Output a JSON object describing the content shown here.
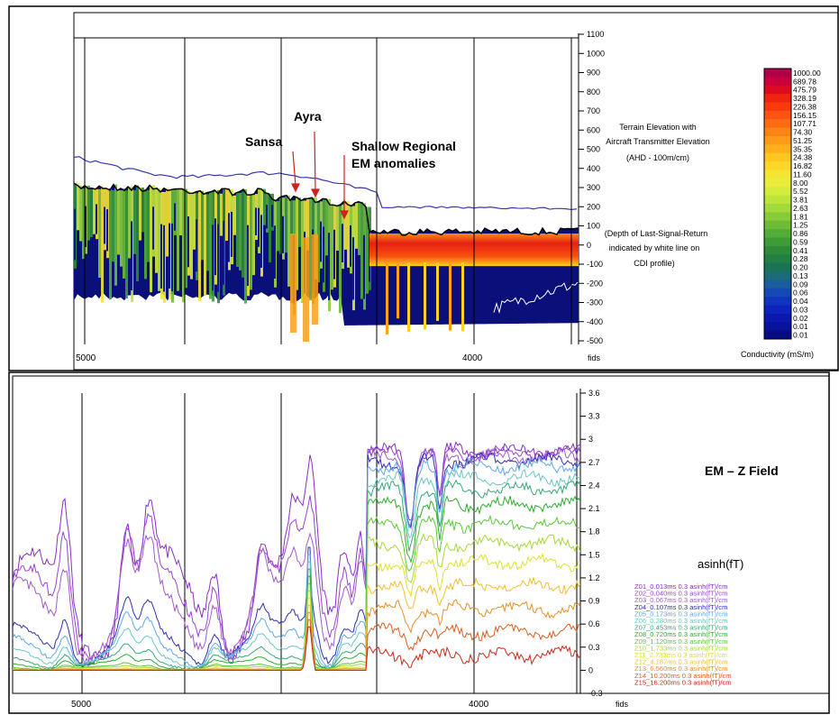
{
  "chart_data": [
    {
      "type": "heatmap",
      "title": "",
      "annotations": [
        "Sansa",
        "Ayra",
        "Shallow Regional",
        "EM anomalies"
      ],
      "side_text": {
        "line1": "Terrain Elevation with",
        "line2": "Aircraft Transmitter Elevation",
        "line3": "(AHD - 100m/cm)",
        "line4": "(Depth of Last-Signal-Return",
        "line5": "indicated by white line on",
        "line6": "CDI profile)"
      },
      "y_ticks": [
        "1100",
        "1000",
        "900",
        "800",
        "700",
        "600",
        "500",
        "400",
        "300",
        "200",
        "100",
        "0",
        "-100",
        "-200",
        "-300",
        "-400",
        "-500"
      ],
      "ylim": [
        -500,
        1100
      ],
      "x_ticks": [
        "5000",
        "4000"
      ],
      "x_unit": "fids",
      "colorbar": {
        "label": "Conductivity (mS/m)",
        "values": [
          "1000.00",
          "689.78",
          "475.79",
          "328.19",
          "226.38",
          "156.15",
          "107.71",
          "74.30",
          "51.25",
          "35.35",
          "24.38",
          "16.82",
          "11.60",
          "8.00",
          "5.52",
          "3.81",
          "2.63",
          "1.81",
          "1.25",
          "0.86",
          "0.59",
          "0.41",
          "0.28",
          "0.20",
          "0.13",
          "0.09",
          "0.06",
          "0.04",
          "0.03",
          "0.02",
          "0.01",
          "0.01"
        ],
        "colors": [
          "#b0004a",
          "#c8003c",
          "#dd0a22",
          "#ee2410",
          "#f83a0a",
          "#fb5410",
          "#fd6c12",
          "#fd8414",
          "#fe9c18",
          "#feb01c",
          "#fec620",
          "#fcd628",
          "#f6e434",
          "#eaec3c",
          "#d6ec3a",
          "#bce43a",
          "#a2da3a",
          "#86cc38",
          "#6cbc38",
          "#52ac36",
          "#3e9c36",
          "#2e8c38",
          "#228044",
          "#1a7454",
          "#1a6c78",
          "#1a5c9c",
          "#1448b4",
          "#1034c0",
          "#0c24bc",
          "#0a18b0",
          "#08129c",
          "#060c84"
        ]
      }
    },
    {
      "type": "line",
      "title": "EM – Z Field",
      "ylabel": "asinh(fT)",
      "y_ticks": [
        "3.6",
        "3.3",
        "3",
        "2.7",
        "2.4",
        "2.1",
        "1.8",
        "1.5",
        "1.2",
        "0.9",
        "0.6",
        "0.3",
        "0",
        "-0.3"
      ],
      "ylim": [
        -0.3,
        3.6
      ],
      "x_ticks": [
        "5000",
        "4000"
      ],
      "x_unit": "fids",
      "series": [
        {
          "name": "Z01_0.013ms 0.3 asinh(fT)/cm",
          "color": "#8a2fc8",
          "left_level": 1.55,
          "right_level": 2.85
        },
        {
          "name": "Z02_0.040ms 0.3 asinh(fT)/cm",
          "color": "#9b44d2",
          "left_level": 1.35,
          "right_level": 2.82
        },
        {
          "name": "Z03_0.067ms 0.3 asinh(fT)/cm",
          "color": "#a05cc8",
          "left_level": 1.15,
          "right_level": 2.78
        },
        {
          "name": "Z04_0.107ms 0.3 asinh(fT)/cm",
          "color": "#3030b8",
          "left_level": 0.6,
          "right_level": 2.72
        },
        {
          "name": "Z05_0.173ms 0.3 asinh(fT)/cm",
          "color": "#60a8e8",
          "left_level": 0.45,
          "right_level": 2.65
        },
        {
          "name": "Z06_0.280ms 0.3 asinh(fT)/cm",
          "color": "#6cc8c0",
          "left_level": 0.32,
          "right_level": 2.5
        },
        {
          "name": "Z07_0.453ms 0.3 asinh(fT)/cm",
          "color": "#38a878",
          "left_level": 0.2,
          "right_level": 2.35
        },
        {
          "name": "Z08_0.720ms 0.3 asinh(fT)/cm",
          "color": "#2fae2f",
          "left_level": 0.12,
          "right_level": 2.15
        },
        {
          "name": "Z09_1.120ms 0.3 asinh(fT)/cm",
          "color": "#5cc83a",
          "left_level": 0.06,
          "right_level": 1.9
        },
        {
          "name": "Z10_1.733ms 0.3 asinh(fT)/cm",
          "color": "#a8d838",
          "left_level": 0.04,
          "right_level": 1.65
        },
        {
          "name": "Z11_2.733ms 0.3 asinh(fT)/cm",
          "color": "#e0e030",
          "left_level": 0.02,
          "right_level": 1.4
        },
        {
          "name": "Z12_4.187ms 0.3 asinh(fT)/cm",
          "color": "#f0c030",
          "left_level": 0.01,
          "right_level": 1.1
        },
        {
          "name": "Z13_6.560ms 0.3 asinh(fT)/cm",
          "color": "#e89028",
          "left_level": 0.01,
          "right_level": 0.8
        },
        {
          "name": "Z14_10.200ms 0.3 asinh(fT)/cm",
          "color": "#d86020",
          "left_level": 0.0,
          "right_level": 0.5
        },
        {
          "name": "Z15_16.200ms 0.3 asinh(fT)/cm",
          "color": "#c82818",
          "left_level": 0.0,
          "right_level": 0.2
        }
      ]
    }
  ]
}
